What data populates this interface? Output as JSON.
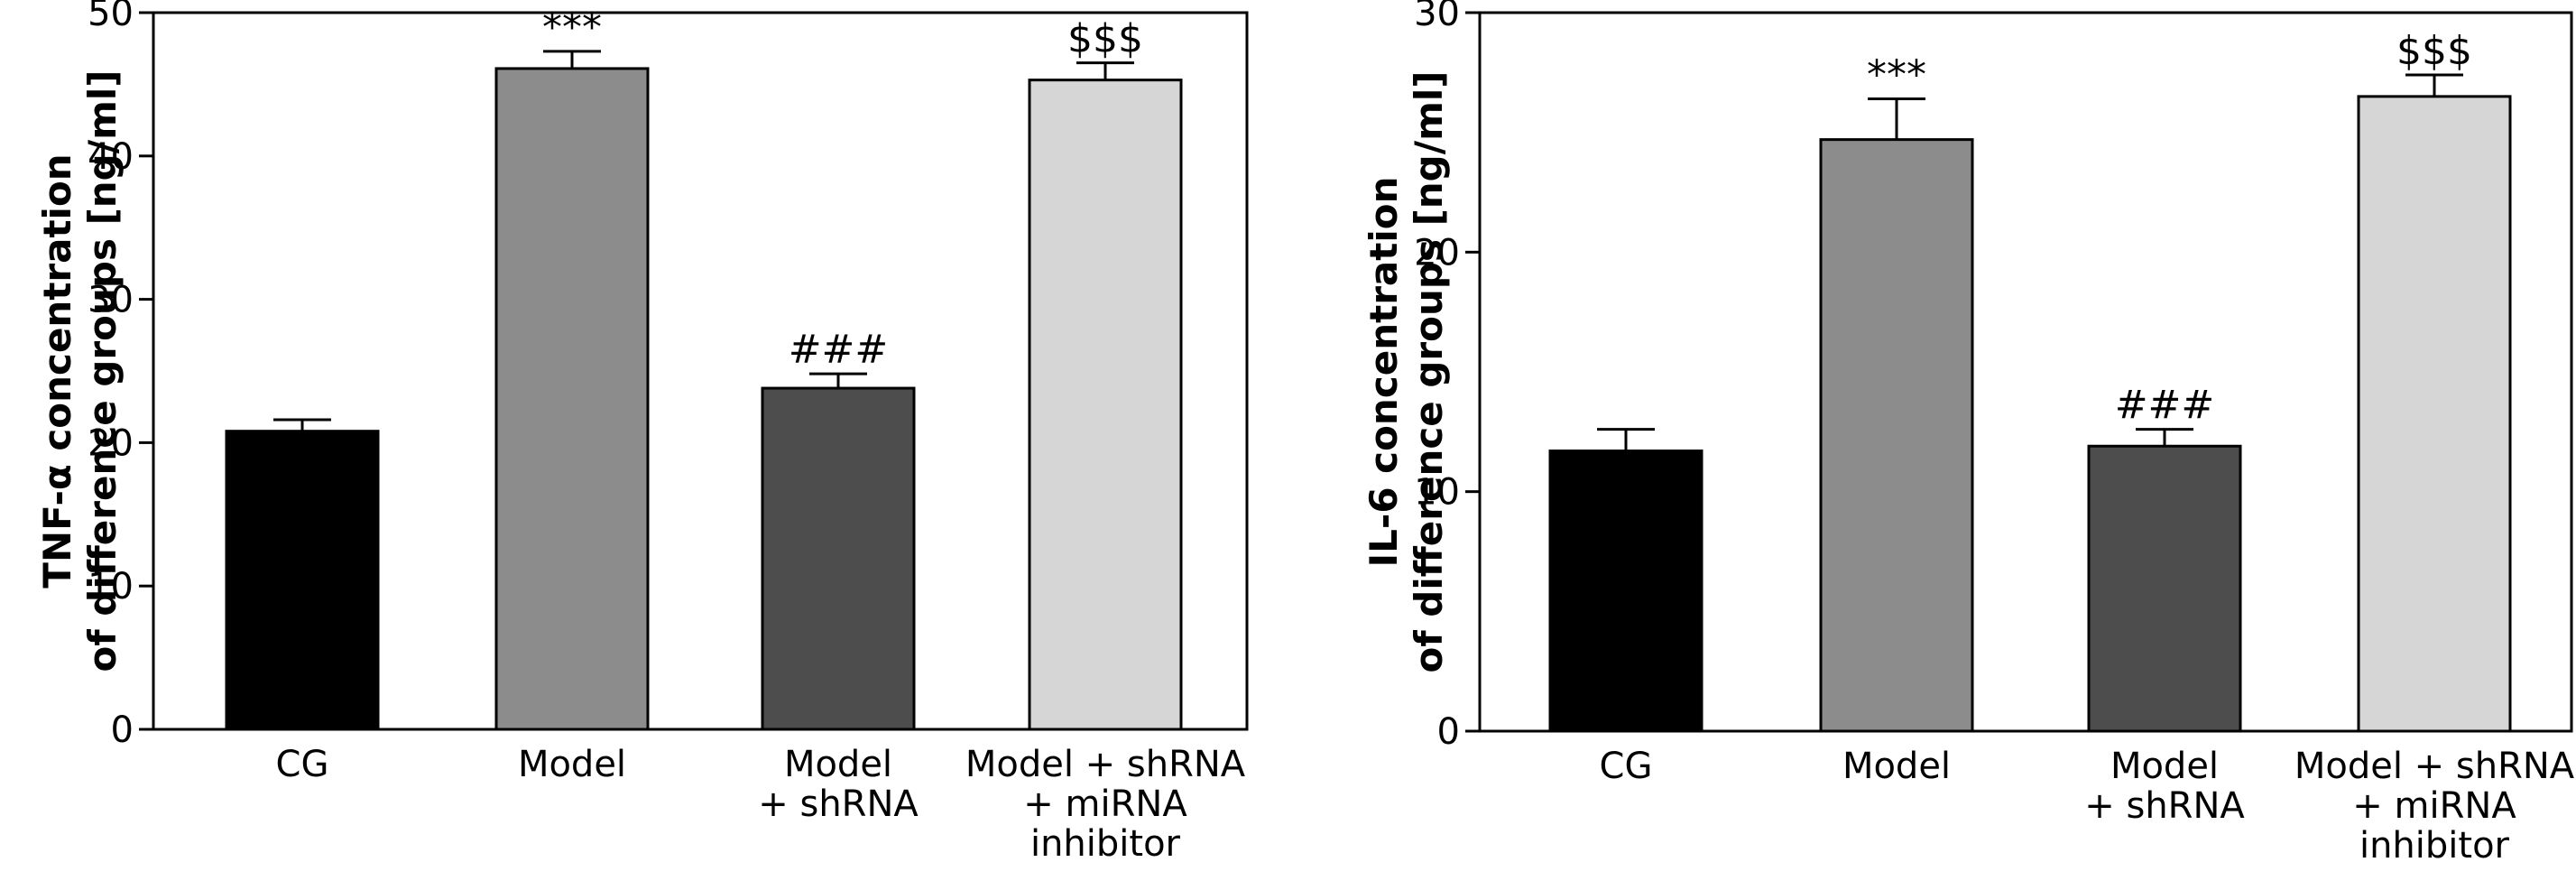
{
  "chart_data": [
    {
      "type": "bar",
      "categories": [
        [
          "CG"
        ],
        [
          "Model"
        ],
        [
          "Model",
          "+ shRNA"
        ],
        [
          "Model + shRNA",
          "+ miRNA",
          "inhibitor"
        ]
      ],
      "values": [
        20.8,
        46.1,
        23.8,
        45.3
      ],
      "errors": [
        0.8,
        1.2,
        1.0,
        1.2
      ],
      "annotations": [
        "",
        "***",
        "###",
        "$$$"
      ],
      "bar_colors": [
        "#000000",
        "#8c8c8c",
        "#4d4d4d",
        "#d6d6d6"
      ],
      "ylabel": [
        "TNF-α concentration",
        "of difference groups [ng/ml]"
      ],
      "xlabel": "",
      "ylim": [
        0,
        50
      ],
      "yticks": [
        0,
        10,
        20,
        30,
        40,
        50
      ],
      "grid": false
    },
    {
      "type": "bar",
      "categories": [
        [
          "CG"
        ],
        [
          "Model"
        ],
        [
          "Model",
          "+ shRNA"
        ],
        [
          "Model + shRNA",
          "+ miRNA",
          "inhibitor"
        ]
      ],
      "values": [
        11.7,
        24.7,
        11.9,
        26.5
      ],
      "errors": [
        0.9,
        1.7,
        0.7,
        0.9
      ],
      "annotations": [
        "",
        "***",
        "###",
        "$$$"
      ],
      "bar_colors": [
        "#000000",
        "#8c8c8c",
        "#4d4d4d",
        "#d6d6d6"
      ],
      "ylabel": [
        "IL-6 concentration",
        "of difference groups [ng/ml]"
      ],
      "xlabel": "",
      "ylim": [
        0,
        30
      ],
      "yticks": [
        0,
        10,
        20,
        30
      ],
      "grid": false
    }
  ]
}
